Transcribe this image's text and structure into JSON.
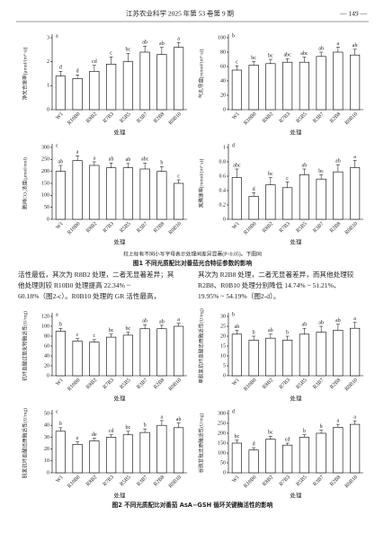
{
  "header": {
    "journal": "江苏农业科学  2025 年第 53 卷第 9 期",
    "page": "— 149 —"
  },
  "figure1": {
    "note": "柱上标有不同小写字母表示处理间差异显著(P<0.05)。下图同",
    "caption": "图1  不同光质配比对番茄光合特征参数的影响"
  },
  "text": {
    "left": [
      "活性最低，其次为 R8B2 处理，二者无显著差异；其",
      "他处理则较 R10B0 处理提高 22.34% ~",
      "60.18%（图2-c）。R0B10 处理的 GR 活性最高，"
    ],
    "right": [
      "其次为 R2B8 处理，二者无显著差异，而其他处理较",
      "R2B8、R0B10 处理分别降低 14.74% ~ 51.21%、",
      "19.95% ~ 54.19%（图2-d）。"
    ]
  },
  "figure2": {
    "caption": "图2  不同光质配比对番茄 AsA−GSH 循环关键酶活性的影响"
  },
  "chart_data": [
    {
      "type": "bar",
      "panel": "a",
      "ylabel": "净光合速率[μmol/(m²·s)]",
      "xlabel": "处理",
      "color": "#ffffff",
      "categories": [
        "W1",
        "R10B0",
        "R8B2",
        "R7B3",
        "R5B5",
        "R3B7",
        "R2B8",
        "R0B10"
      ],
      "values": [
        1.4,
        1.3,
        1.6,
        1.9,
        2.0,
        2.4,
        2.3,
        2.6
      ],
      "errors": [
        0.2,
        0.15,
        0.25,
        0.3,
        0.35,
        0.25,
        0.3,
        0.2
      ],
      "letters": [
        "d",
        "d",
        "cd",
        "c",
        "bc",
        "ab",
        "ab",
        "a"
      ],
      "ylim": [
        0,
        3
      ],
      "yticks": [
        0,
        1,
        2,
        3
      ]
    },
    {
      "type": "bar",
      "panel": "b",
      "ylabel": "气孔导度[mmol/(m²·s)]",
      "xlabel": "处理",
      "color": "#ffffff",
      "categories": [
        "W1",
        "R10B0",
        "R8B2",
        "R7B3",
        "R5B5",
        "R3B7",
        "R2B8",
        "R0B10"
      ],
      "values": [
        55,
        62,
        64,
        66,
        66,
        74,
        80,
        76
      ],
      "errors": [
        6,
        5,
        6,
        5,
        7,
        6,
        7,
        8
      ],
      "letters": [
        "c",
        "bc",
        "bc",
        "abc",
        "abc",
        "ab",
        "a",
        "ab"
      ],
      "ylim": [
        0,
        100
      ],
      "yticks": [
        0,
        20,
        40,
        60,
        80,
        100
      ]
    },
    {
      "type": "bar",
      "panel": "c",
      "ylabel": "胞间CO₂浓度(μmol/mol)",
      "xlabel": "处理",
      "color": "#ffffff",
      "categories": [
        "W1",
        "R10B0",
        "R8B2",
        "R7B3",
        "R5B5",
        "R3B7",
        "R2B8",
        "R0B10"
      ],
      "values": [
        200,
        245,
        225,
        215,
        215,
        210,
        200,
        150
      ],
      "errors": [
        25,
        20,
        15,
        20,
        18,
        25,
        20,
        15
      ],
      "letters": [
        "ab",
        "a",
        "a",
        "ab",
        "ab",
        "abc",
        "b",
        "c"
      ],
      "ylim": [
        0,
        300
      ],
      "yticks": [
        0,
        50,
        100,
        150,
        200,
        250,
        300
      ]
    },
    {
      "type": "bar",
      "panel": "d",
      "ylabel": "蒸腾速率[mmol/(m²·s)]",
      "xlabel": "处理",
      "color": "#ffffff",
      "categories": [
        "W1",
        "R10B0",
        "R8B2",
        "R7B3",
        "R5B5",
        "R3B7",
        "R2B8",
        "R0B10"
      ],
      "values": [
        0.58,
        0.32,
        0.48,
        0.44,
        0.62,
        0.56,
        0.66,
        0.72
      ],
      "errors": [
        0.12,
        0.05,
        0.1,
        0.08,
        0.08,
        0.06,
        0.1,
        0.1
      ],
      "letters": [
        "abc",
        "d",
        "bc",
        "c",
        "ab",
        "bc",
        "ab",
        "a"
      ],
      "ylim": [
        0,
        1
      ],
      "yticks": [
        0,
        0.2,
        0.4,
        0.6,
        0.8,
        1
      ]
    },
    {
      "type": "bar",
      "panel": "a",
      "ylabel": "抗坏血酸过氧化物酶活性(U/mg)",
      "xlabel": "处理",
      "color": "#ffffff",
      "categories": [
        "W1",
        "R10B0",
        "R8B2",
        "R7B3",
        "R5B5",
        "R3B7",
        "R2B8",
        "R0B10"
      ],
      "values": [
        90,
        70,
        68,
        78,
        82,
        95,
        95,
        100
      ],
      "errors": [
        6,
        5,
        5,
        6,
        6,
        8,
        7,
        6
      ],
      "letters": [
        "b",
        "c",
        "c",
        "bc",
        "bc",
        "ab",
        "ab",
        "a"
      ],
      "ylim": [
        0,
        120
      ],
      "yticks": [
        0,
        20,
        40,
        60,
        80,
        100,
        120
      ]
    },
    {
      "type": "bar",
      "panel": "b",
      "ylabel": "单脱氢抗坏血酸还原酶活性(U/mg)",
      "xlabel": "处理",
      "color": "#ffffff",
      "categories": [
        "W1",
        "R10B0",
        "R8B2",
        "R7B3",
        "R5B5",
        "R3B7",
        "R2B8",
        "R0B10"
      ],
      "values": [
        21,
        18,
        19,
        18,
        21,
        22,
        23,
        24
      ],
      "errors": [
        2,
        2,
        2,
        2,
        3,
        3,
        3,
        3
      ],
      "letters": [
        "ab",
        "b",
        "ab",
        "b",
        "ab",
        "ab",
        "ab",
        "a"
      ],
      "ylim": [
        0,
        30
      ],
      "yticks": [
        0,
        5,
        10,
        15,
        20,
        25,
        30
      ]
    },
    {
      "type": "bar",
      "panel": "c",
      "ylabel": "脱氢抗坏血酸还原酶活性(U/mg)",
      "xlabel": "处理",
      "color": "#ffffff",
      "categories": [
        "W1",
        "R10B0",
        "R8B2",
        "R7B3",
        "R5B5",
        "R3B7",
        "R2B8",
        "R0B10"
      ],
      "values": [
        35,
        24,
        27,
        30,
        32,
        34,
        40,
        38
      ],
      "errors": [
        3,
        2,
        2,
        2,
        3,
        3,
        4,
        4
      ],
      "letters": [
        "b",
        "e",
        "de",
        "cd",
        "bc",
        "b",
        "a",
        "ab"
      ],
      "ylim": [
        0,
        50
      ],
      "yticks": [
        0,
        10,
        20,
        30,
        40,
        50
      ]
    },
    {
      "type": "bar",
      "panel": "d",
      "ylabel": "谷胱甘肽还原酶活性(U/mg)",
      "xlabel": "处理",
      "color": "#ffffff",
      "categories": [
        "W1",
        "R10B0",
        "R8B2",
        "R7B3",
        "R5B5",
        "R3B7",
        "R2B8",
        "R0B10"
      ],
      "values": [
        150,
        115,
        170,
        140,
        180,
        200,
        230,
        245
      ],
      "errors": [
        15,
        12,
        15,
        10,
        12,
        15,
        15,
        18
      ],
      "letters": [
        "bc",
        "d",
        "bc",
        "cd",
        "b",
        "b",
        "a",
        "a"
      ],
      "ylim": [
        0,
        300
      ],
      "yticks": [
        0,
        50,
        100,
        150,
        200,
        250,
        300
      ]
    }
  ]
}
